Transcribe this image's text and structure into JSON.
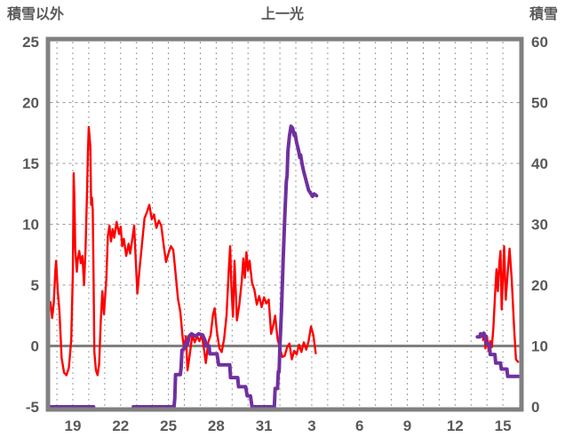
{
  "header": {
    "title": "上一光",
    "left_axis_label": "積雪以外",
    "right_axis_label": "積雪"
  },
  "colors": {
    "red_series": "#ff0000",
    "purple_series": "#7030a0",
    "frame": "#808080",
    "grid": "#999999",
    "zero_line": "#808080",
    "text": "#595959",
    "background": "#ffffff"
  },
  "chart_data": {
    "type": "line",
    "title": "上一光",
    "grid": true,
    "legend": "none",
    "left_axis": {
      "label": "積雪以外",
      "min": -5,
      "max": 25,
      "tick_labels": [
        "25",
        "20",
        "15",
        "10",
        "5",
        "0",
        "-5"
      ],
      "tick_values": [
        25,
        20,
        15,
        10,
        5,
        0,
        -5
      ]
    },
    "right_axis": {
      "label": "積雪",
      "min": 0,
      "max": 60,
      "tick_labels": [
        "60",
        "50",
        "40",
        "30",
        "20",
        "10",
        "0"
      ],
      "tick_values": [
        60,
        50,
        40,
        30,
        20,
        10,
        0
      ]
    },
    "x_axis": {
      "tick_labels": [
        "19",
        "22",
        "25",
        "28",
        "31",
        "3",
        "6",
        "9",
        "12",
        "15"
      ],
      "tick_day_values": [
        19,
        22,
        25,
        28,
        31,
        34,
        37,
        40,
        43,
        46
      ],
      "day_start": 17.6,
      "day_end": 47.0,
      "gridline_every_days": 1,
      "note_day_units": "days since Jan 0; 32 = Feb 1"
    },
    "series": [
      {
        "id": "other-than-snow",
        "axis": "left",
        "color": "#ff0000",
        "width": 2.4,
        "segments": [
          [
            [
              17.6,
              3.6
            ],
            [
              17.7,
              2.3
            ],
            [
              17.8,
              3.5
            ],
            [
              17.9,
              6.2
            ],
            [
              17.95,
              7.0
            ],
            [
              18.05,
              4.5
            ],
            [
              18.15,
              3.0
            ],
            [
              18.3,
              -1.0
            ],
            [
              18.45,
              -2.2
            ],
            [
              18.6,
              -2.4
            ],
            [
              18.75,
              -1.8
            ],
            [
              18.9,
              0.5
            ],
            [
              19.0,
              6.0
            ],
            [
              19.05,
              14.2
            ],
            [
              19.1,
              12.0
            ],
            [
              19.15,
              8.0
            ],
            [
              19.25,
              6.1
            ],
            [
              19.3,
              7.0
            ],
            [
              19.4,
              7.8
            ],
            [
              19.5,
              6.8
            ],
            [
              19.6,
              7.4
            ],
            [
              19.7,
              5.0
            ],
            [
              19.8,
              8.0
            ],
            [
              19.9,
              13.0
            ],
            [
              19.95,
              16.0
            ],
            [
              20.0,
              18.0
            ],
            [
              20.1,
              16.4
            ],
            [
              20.15,
              11.6
            ],
            [
              20.2,
              12.2
            ],
            [
              20.25,
              11.2
            ],
            [
              20.3,
              5.8
            ],
            [
              20.35,
              -0.5
            ],
            [
              20.45,
              -2.0
            ],
            [
              20.55,
              -2.4
            ],
            [
              20.65,
              -1.5
            ],
            [
              20.75,
              2.0
            ],
            [
              20.85,
              4.5
            ],
            [
              20.95,
              2.6
            ],
            [
              21.1,
              5.5
            ],
            [
              21.2,
              9.0
            ],
            [
              21.3,
              9.9
            ],
            [
              21.4,
              8.6
            ],
            [
              21.5,
              9.6
            ],
            [
              21.6,
              8.9
            ],
            [
              21.75,
              10.2
            ],
            [
              21.9,
              9.2
            ],
            [
              22.0,
              9.8
            ],
            [
              22.1,
              8.2
            ],
            [
              22.2,
              8.8
            ],
            [
              22.35,
              7.4
            ],
            [
              22.5,
              8.4
            ],
            [
              22.6,
              7.6
            ],
            [
              22.75,
              8.9
            ],
            [
              22.85,
              9.9
            ],
            [
              22.95,
              7.1
            ],
            [
              23.05,
              4.3
            ],
            [
              23.2,
              6.5
            ],
            [
              23.35,
              8.5
            ],
            [
              23.5,
              10.5
            ],
            [
              23.65,
              11.0
            ],
            [
              23.8,
              11.6
            ],
            [
              23.95,
              10.4
            ],
            [
              24.1,
              10.8
            ],
            [
              24.25,
              9.7
            ],
            [
              24.4,
              10.3
            ],
            [
              24.55,
              9.9
            ],
            [
              24.7,
              8.3
            ],
            [
              24.85,
              6.9
            ],
            [
              25.0,
              7.6
            ],
            [
              25.15,
              8.2
            ],
            [
              25.3,
              7.9
            ],
            [
              25.45,
              6.0
            ],
            [
              25.6,
              3.9
            ],
            [
              25.75,
              2.8
            ],
            [
              25.9,
              0.6
            ],
            [
              26.0,
              -0.3
            ],
            [
              26.1,
              0.8
            ],
            [
              26.2,
              -2.0
            ],
            [
              26.35,
              -0.6
            ],
            [
              26.5,
              0.9
            ],
            [
              26.65,
              0.3
            ],
            [
              26.8,
              0.8
            ],
            [
              26.95,
              0.4
            ],
            [
              27.1,
              0.9
            ],
            [
              27.25,
              -0.4
            ],
            [
              27.35,
              -1.4
            ],
            [
              27.5,
              0.3
            ],
            [
              27.65,
              0.9
            ],
            [
              27.8,
              2.6
            ],
            [
              27.9,
              3.1
            ],
            [
              28.05,
              1.1
            ],
            [
              28.2,
              -0.2
            ],
            [
              28.35,
              -0.5
            ],
            [
              28.5,
              0.6
            ],
            [
              28.65,
              2.5
            ],
            [
              28.8,
              6.5
            ],
            [
              28.88,
              8.2
            ],
            [
              28.95,
              5.0
            ],
            [
              29.05,
              2.4
            ],
            [
              29.15,
              7.0
            ],
            [
              29.3,
              2.1
            ],
            [
              29.45,
              3.4
            ],
            [
              29.6,
              5.3
            ],
            [
              29.7,
              7.2
            ],
            [
              29.8,
              5.6
            ],
            [
              29.9,
              7.7
            ],
            [
              30.0,
              6.2
            ],
            [
              30.1,
              7.0
            ],
            [
              30.25,
              5.2
            ],
            [
              30.4,
              4.6
            ],
            [
              30.55,
              3.4
            ],
            [
              30.7,
              4.1
            ],
            [
              30.85,
              3.2
            ],
            [
              31.0,
              4.0
            ],
            [
              31.15,
              3.5
            ],
            [
              31.3,
              3.8
            ],
            [
              31.45,
              1.0
            ],
            [
              31.6,
              1.8
            ],
            [
              31.7,
              2.5
            ],
            [
              31.85,
              0.6
            ],
            [
              32.0,
              -0.2
            ],
            [
              32.15,
              -0.9
            ],
            [
              32.3,
              -0.8
            ],
            [
              32.45,
              -0.1
            ],
            [
              32.6,
              0.2
            ],
            [
              32.75,
              -1.1
            ],
            [
              32.9,
              -0.4
            ],
            [
              33.05,
              -0.7
            ],
            [
              33.2,
              0.1
            ],
            [
              33.35,
              -0.5
            ],
            [
              33.5,
              0.3
            ],
            [
              33.65,
              -0.3
            ],
            [
              33.8,
              0.4
            ],
            [
              33.95,
              1.6
            ],
            [
              34.1,
              0.9
            ],
            [
              34.25,
              -0.6
            ]
          ],
          [
            [
              44.75,
              0.5
            ],
            [
              44.85,
              1.0
            ],
            [
              44.9,
              -0.2
            ],
            [
              45.0,
              0.8
            ],
            [
              45.1,
              -0.4
            ],
            [
              45.2,
              0.4
            ],
            [
              45.3,
              -0.1
            ],
            [
              45.4,
              1.5
            ],
            [
              45.5,
              4.0
            ],
            [
              45.6,
              6.3
            ],
            [
              45.68,
              4.5
            ],
            [
              45.78,
              6.9
            ],
            [
              45.85,
              7.8
            ],
            [
              45.92,
              3.0
            ],
            [
              46.0,
              5.5
            ],
            [
              46.08,
              8.2
            ],
            [
              46.18,
              3.8
            ],
            [
              46.3,
              6.0
            ],
            [
              46.42,
              8.0
            ],
            [
              46.55,
              5.5
            ],
            [
              46.7,
              1.5
            ],
            [
              46.82,
              -1.1
            ],
            [
              46.95,
              -1.3
            ]
          ]
        ]
      },
      {
        "id": "snow-depth",
        "axis": "right",
        "color": "#7030a0",
        "width": 4,
        "segments": [
          [
            [
              17.6,
              0
            ],
            [
              20.3,
              0
            ]
          ],
          [
            [
              22.8,
              0
            ],
            [
              25.35,
              0
            ],
            [
              25.4,
              1.5
            ],
            [
              25.45,
              5.3
            ],
            [
              25.75,
              5.3
            ],
            [
              25.8,
              6.5
            ],
            [
              25.85,
              9.3
            ],
            [
              26.0,
              9.6
            ],
            [
              26.1,
              10.5
            ],
            [
              26.2,
              10.2
            ],
            [
              26.3,
              11.6
            ],
            [
              26.45,
              12.0
            ],
            [
              26.7,
              11.6
            ],
            [
              26.9,
              12.0
            ],
            [
              27.15,
              11.8
            ],
            [
              27.3,
              10.9
            ],
            [
              27.35,
              10.0
            ],
            [
              27.55,
              10.0
            ],
            [
              27.6,
              8.7
            ],
            [
              28.05,
              8.7
            ],
            [
              28.15,
              6.9
            ],
            [
              28.85,
              6.9
            ],
            [
              28.9,
              4.8
            ],
            [
              29.35,
              4.8
            ],
            [
              29.4,
              3.3
            ],
            [
              29.85,
              3.3
            ],
            [
              29.95,
              1.8
            ],
            [
              30.15,
              1.8
            ],
            [
              30.25,
              0
            ],
            [
              31.65,
              0
            ],
            [
              31.7,
              3.0
            ],
            [
              31.85,
              3.0
            ],
            [
              31.9,
              5.8
            ],
            [
              31.95,
              5.8
            ],
            [
              32.0,
              10
            ],
            [
              32.1,
              16
            ],
            [
              32.2,
              24
            ],
            [
              32.3,
              31
            ],
            [
              32.4,
              37
            ],
            [
              32.45,
              38
            ],
            [
              32.5,
              42
            ],
            [
              32.6,
              44.5
            ],
            [
              32.7,
              46.1
            ],
            [
              32.8,
              45.8
            ],
            [
              32.9,
              44.6
            ],
            [
              32.95,
              45.0
            ],
            [
              33.05,
              43.4
            ],
            [
              33.15,
              42.4
            ],
            [
              33.25,
              41.0
            ],
            [
              33.3,
              41.4
            ],
            [
              33.4,
              39.8
            ],
            [
              33.5,
              38.6
            ],
            [
              33.6,
              37.6
            ],
            [
              33.7,
              36.6
            ],
            [
              33.8,
              35.6
            ],
            [
              33.95,
              35.0
            ],
            [
              34.05,
              34.6
            ],
            [
              34.15,
              35.0
            ],
            [
              34.3,
              34.7
            ]
          ],
          [
            [
              44.4,
              11.5
            ],
            [
              44.55,
              11.5
            ],
            [
              44.6,
              12.0
            ],
            [
              44.7,
              11.6
            ],
            [
              44.8,
              12.1
            ],
            [
              44.9,
              11.6
            ],
            [
              44.95,
              10.3
            ],
            [
              45.15,
              10.3
            ],
            [
              45.2,
              8.6
            ],
            [
              45.5,
              8.6
            ],
            [
              45.55,
              7.2
            ],
            [
              45.85,
              7.2
            ],
            [
              45.9,
              6.2
            ],
            [
              46.25,
              6.2
            ],
            [
              46.3,
              5.0
            ],
            [
              46.98,
              5.0
            ]
          ]
        ]
      }
    ]
  }
}
